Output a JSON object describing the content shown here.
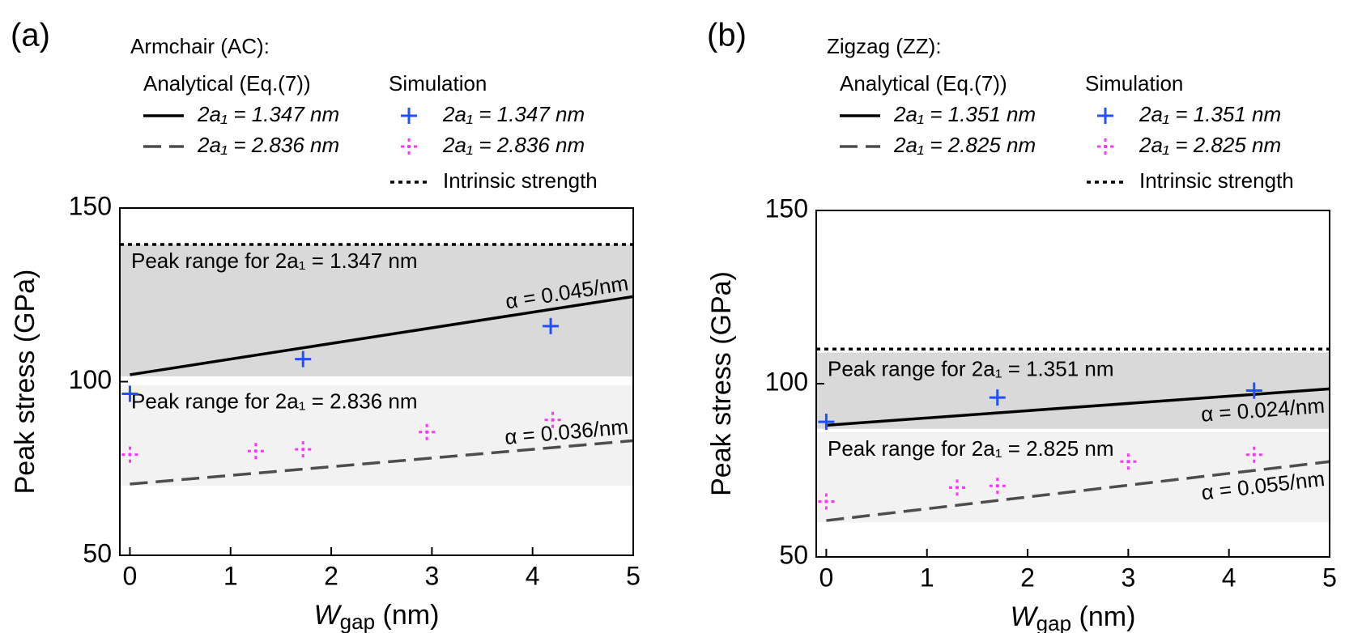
{
  "chart_data": [
    {
      "type": "line",
      "panel_label": "(a)",
      "legend_title": "Armchair (AC):",
      "analytical_header": "Analytical (Eq.(7))",
      "simulation_header": "Simulation",
      "xlabel": {
        "main": "W",
        "sub": "gap",
        "unit": "(nm)"
      },
      "ylabel": "Peak stress (GPa)",
      "xlim": [
        -0.1,
        5
      ],
      "ylim": [
        50,
        150
      ],
      "xticks": [
        0,
        1,
        2,
        3,
        4,
        5
      ],
      "yticks": [
        50,
        100,
        150
      ],
      "bands": [
        {
          "label": "Peak range for 2a₁ = 1.347 nm",
          "range": [
            101.5,
            139.5
          ],
          "color": "#d9d9d9"
        },
        {
          "label": "Peak range for 2a₁ = 2.836 nm",
          "range": [
            70,
            99
          ],
          "color": "#f2f2f2"
        }
      ],
      "series": [
        {
          "name": "2a₁ = 1.347 nm",
          "kind": "analytical",
          "style": "solid",
          "color": "#000000",
          "x": [
            0,
            5
          ],
          "values": [
            102,
            124.5
          ]
        },
        {
          "name": "2a₁ = 2.836 nm",
          "kind": "analytical",
          "style": "dashed",
          "color": "#4d4d4d",
          "x": [
            0,
            5
          ],
          "values": [
            70.5,
            83
          ]
        },
        {
          "name": "2a₁ = 1.347 nm",
          "kind": "simulation",
          "style": "plus",
          "color": "#1f4fff",
          "x": [
            0,
            1.72,
            4.18
          ],
          "values": [
            96.5,
            106.5,
            116
          ]
        },
        {
          "name": "2a₁ = 2.836 nm",
          "kind": "simulation",
          "style": "dashed-plus",
          "color": "#ff33ff",
          "x": [
            0,
            1.25,
            1.72,
            2.95,
            4.2
          ],
          "values": [
            79,
            80,
            80.5,
            85.5,
            89
          ]
        },
        {
          "name": "Intrinsic strength",
          "kind": "reference",
          "style": "dotted",
          "color": "#000000",
          "x": [
            -0.1,
            5
          ],
          "values": [
            139.5,
            139.5
          ]
        }
      ],
      "annotations": [
        {
          "text": "α = 0.045/nm",
          "series": 0
        },
        {
          "text": "α = 0.036/nm",
          "series": 1
        }
      ]
    },
    {
      "type": "line",
      "panel_label": "(b)",
      "legend_title": "Zigzag (ZZ):",
      "analytical_header": "Analytical (Eq.(7))",
      "simulation_header": "Simulation",
      "xlabel": {
        "main": "W",
        "sub": "gap",
        "unit": "(nm)"
      },
      "ylabel": "Peak stress (GPa)",
      "xlim": [
        -0.1,
        5
      ],
      "ylim": [
        50,
        150
      ],
      "xticks": [
        0,
        1,
        2,
        3,
        4,
        5
      ],
      "yticks": [
        50,
        100,
        150
      ],
      "bands": [
        {
          "label": "Peak range for 2a₁ = 1.351 nm",
          "range": [
            87,
            109
          ],
          "color": "#d9d9d9"
        },
        {
          "label": "Peak range for 2a₁ = 2.825 nm",
          "range": [
            60,
            86
          ],
          "color": "#f2f2f2"
        }
      ],
      "series": [
        {
          "name": "2a₁ = 1.351 nm",
          "kind": "analytical",
          "style": "solid",
          "color": "#000000",
          "x": [
            0,
            5
          ],
          "values": [
            88,
            98.5
          ]
        },
        {
          "name": "2a₁ = 2.825 nm",
          "kind": "analytical",
          "style": "dashed",
          "color": "#4d4d4d",
          "x": [
            0,
            5
          ],
          "values": [
            60.5,
            77.5
          ]
        },
        {
          "name": "2a₁ = 1.351 nm",
          "kind": "simulation",
          "style": "plus",
          "color": "#1f4fff",
          "x": [
            0,
            1.7,
            4.25
          ],
          "values": [
            89,
            96,
            98
          ]
        },
        {
          "name": "2a₁ = 2.825 nm",
          "kind": "simulation",
          "style": "dashed-plus",
          "color": "#ff33ff",
          "x": [
            0,
            1.3,
            1.7,
            3.0,
            4.25
          ],
          "values": [
            66,
            70,
            70.5,
            77.5,
            79.5
          ]
        },
        {
          "name": "Intrinsic strength",
          "kind": "reference",
          "style": "dotted",
          "color": "#000000",
          "x": [
            -0.1,
            5
          ],
          "values": [
            110,
            110
          ]
        }
      ],
      "annotations": [
        {
          "text": "α = 0.024/nm",
          "series": 0
        },
        {
          "text": "α = 0.055/nm",
          "series": 1
        }
      ]
    }
  ]
}
